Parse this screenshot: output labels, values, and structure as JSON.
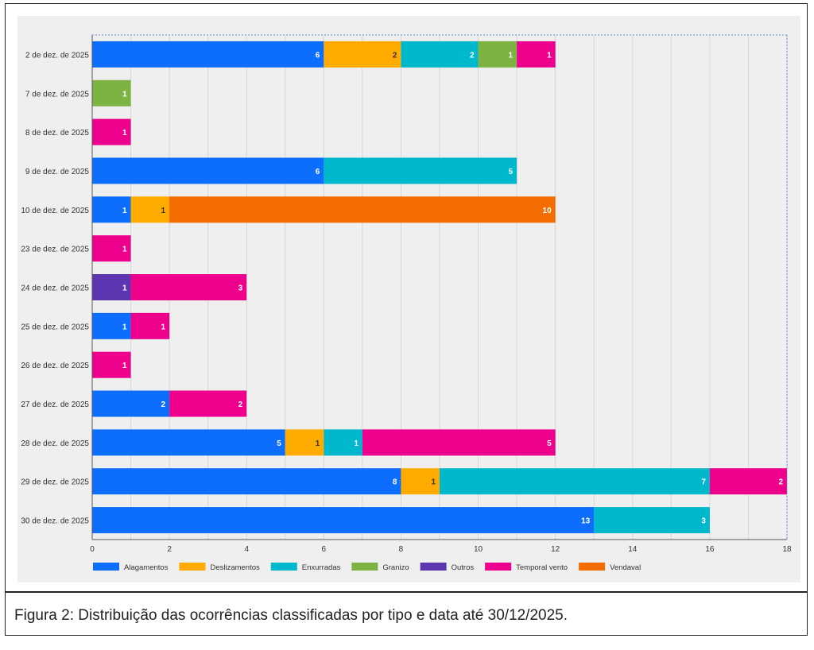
{
  "caption": "Figura 2: Distribuição das ocorrências classificadas por tipo e data até 30/12/2025.",
  "chart_data": {
    "type": "bar",
    "orientation": "horizontal",
    "stacked": true,
    "title": "",
    "xlabel": "",
    "ylabel": "",
    "xlim": [
      0,
      18
    ],
    "x_ticks": [
      0,
      2,
      4,
      6,
      8,
      10,
      12,
      14,
      16,
      18
    ],
    "grid": true,
    "legend_position": "bottom-left",
    "categories": [
      "2 de dez. de 2025",
      "7 de dez. de 2025",
      "8 de dez. de 2025",
      "9 de dez. de 2025",
      "10 de dez. de 2025",
      "23 de dez. de 2025",
      "24 de dez. de 2025",
      "25 de dez. de 2025",
      "26 de dez. de 2025",
      "27 de dez. de 2025",
      "28 de dez. de 2025",
      "29 de dez. de 2025",
      "30 de dez. de 2025"
    ],
    "series": [
      {
        "name": "Alagamentos",
        "color": "#0d6efd",
        "label_color": "#ffffff",
        "values": [
          6,
          0,
          0,
          6,
          1,
          0,
          0,
          1,
          0,
          2,
          5,
          8,
          13
        ]
      },
      {
        "name": "Deslizamentos",
        "color": "#ffab00",
        "label_color": "#333333",
        "values": [
          2,
          0,
          0,
          0,
          1,
          0,
          0,
          0,
          0,
          0,
          1,
          1,
          0
        ]
      },
      {
        "name": "Enxurradas",
        "color": "#00b8cc",
        "label_color": "#ffffff",
        "values": [
          2,
          0,
          0,
          5,
          0,
          0,
          0,
          0,
          0,
          0,
          1,
          7,
          3
        ]
      },
      {
        "name": "Granizo",
        "color": "#7cb342",
        "label_color": "#ffffff",
        "values": [
          1,
          1,
          0,
          0,
          0,
          0,
          0,
          0,
          0,
          0,
          0,
          0,
          0
        ]
      },
      {
        "name": "Outros",
        "color": "#5e35b1",
        "label_color": "#ffffff",
        "values": [
          0,
          0,
          0,
          0,
          0,
          0,
          1,
          0,
          0,
          0,
          0,
          0,
          0
        ]
      },
      {
        "name": "Temporal vento",
        "color": "#ec008c",
        "label_color": "#ffffff",
        "values": [
          1,
          0,
          1,
          0,
          0,
          1,
          3,
          1,
          1,
          2,
          5,
          2,
          0
        ]
      },
      {
        "name": "Vendaval",
        "color": "#f46d00",
        "label_color": "#ffffff",
        "values": [
          0,
          0,
          0,
          0,
          10,
          0,
          0,
          0,
          0,
          0,
          0,
          0,
          0
        ]
      }
    ]
  }
}
